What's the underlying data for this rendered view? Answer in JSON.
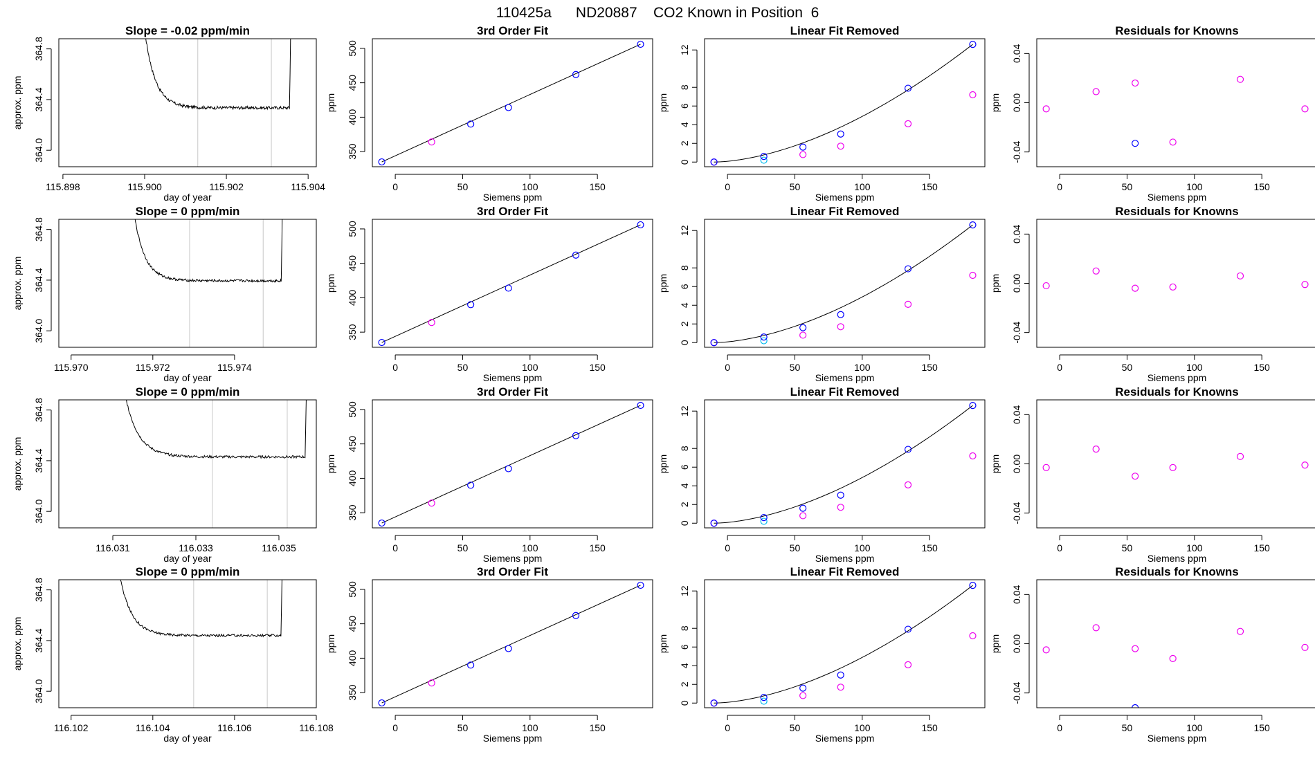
{
  "page_title": "110425a      ND20887    CO2 Known in Position  6",
  "chart_data": [
    {
      "id": "r0c0",
      "type": "line",
      "title": "Slope =  -0.02  ppm/min",
      "xlabel": "day of year",
      "ylabel": "approx. ppm",
      "xlim": [
        115.8979,
        115.9042
      ],
      "ylim": [
        363.87,
        364.88
      ],
      "xticks": [
        115.898,
        115.9,
        115.902,
        115.904
      ],
      "xtick_labels": [
        "115.898",
        "115.900",
        "115.902",
        "115.904"
      ],
      "yticks": [
        364.0,
        364.4,
        364.8
      ],
      "ytick_labels": [
        "364.0",
        "364.4",
        "364.8"
      ],
      "vlines": [
        115.9013,
        115.9031
      ],
      "x_start": 115.8999,
      "x_end": 115.9036,
      "plateau": 364.335,
      "jitter": 0.012
    },
    {
      "id": "r0c1",
      "type": "scatter",
      "title": "3rd Order Fit",
      "xlabel": "Siemens ppm",
      "ylabel": "ppm",
      "xlim": [
        -17,
        191
      ],
      "ylim": [
        328,
        514
      ],
      "xticks": [
        0,
        50,
        100,
        150
      ],
      "xtick_labels": [
        "0",
        "50",
        "100",
        "150"
      ],
      "yticks": [
        350,
        400,
        450,
        500
      ],
      "ytick_labels": [
        "350",
        "400",
        "450",
        "500"
      ],
      "points": {
        "x": [
          -10,
          27,
          56,
          84,
          134,
          182
        ],
        "y": [
          335,
          364,
          390,
          414,
          462,
          506
        ]
      },
      "point_colors": [
        "#0000ff",
        "#ee00ee",
        "#0000ff",
        "#0000ff",
        "#0000ff",
        "#0000ff"
      ],
      "fit_line": [
        [
          -10,
          335
        ],
        [
          182,
          506
        ]
      ]
    },
    {
      "id": "r0c2",
      "type": "scatter",
      "title": "Linear Fit Removed",
      "xlabel": "Siemens ppm",
      "ylabel": "ppm",
      "xlim": [
        -17,
        191
      ],
      "ylim": [
        -0.5,
        13.2
      ],
      "xticks": [
        0,
        50,
        100,
        150
      ],
      "xtick_labels": [
        "0",
        "50",
        "100",
        "150"
      ],
      "yticks": [
        0,
        2,
        4,
        6,
        8,
        12
      ],
      "ytick_labels": [
        "0",
        "2",
        "4",
        "6",
        "8",
        "12"
      ],
      "blue_points": {
        "x": [
          -10,
          27,
          56,
          84,
          134,
          182
        ],
        "y": [
          0,
          0.6,
          1.6,
          3.0,
          7.9,
          12.6
        ]
      },
      "cyan_points": {
        "x": [
          27
        ],
        "y": [
          0.2
        ]
      },
      "magenta_points": {
        "x": [
          -10,
          56,
          84,
          134,
          182
        ],
        "y": [
          0,
          0.8,
          1.7,
          4.1,
          7.2
        ]
      },
      "curve": {
        "x0": -10,
        "x1": 182,
        "y1": 12.6,
        "power": 1.7
      }
    },
    {
      "id": "r0c3",
      "type": "scatter",
      "title": "Residuals for Knowns",
      "xlabel": "Siemens ppm",
      "ylabel": "ppm",
      "xlim": [
        -17,
        191
      ],
      "ylim": [
        -0.052,
        0.052
      ],
      "xticks": [
        0,
        50,
        100,
        150
      ],
      "xtick_labels": [
        "0",
        "50",
        "100",
        "150"
      ],
      "yticks": [
        -0.04,
        0.0,
        0.04
      ],
      "ytick_labels": [
        "-0.04",
        "0.00",
        "0.04"
      ],
      "points": {
        "x": [
          -10,
          27,
          56,
          56,
          84,
          134,
          182
        ],
        "y": [
          -0.005,
          0.009,
          0.016,
          -0.033,
          -0.032,
          0.019,
          -0.005
        ]
      },
      "point_colors": [
        "#ee00ee",
        "#ee00ee",
        "#ee00ee",
        "#0000ff",
        "#ee00ee",
        "#ee00ee",
        "#ee00ee"
      ]
    },
    {
      "id": "r1c0",
      "type": "line",
      "title": "Slope =  0  ppm/min",
      "xlabel": "day of year",
      "ylabel": "approx. ppm",
      "xlim": [
        115.9697,
        115.976
      ],
      "ylim": [
        363.87,
        364.88
      ],
      "xticks": [
        115.97,
        115.972,
        115.974
      ],
      "xtick_labels": [
        "115.970",
        "115.972",
        "115.974"
      ],
      "yticks": [
        364.0,
        364.4,
        364.8
      ],
      "ytick_labels": [
        "364.0",
        "364.4",
        "364.8"
      ],
      "vlines": [
        115.9729,
        115.9747
      ],
      "x_start": 115.9714,
      "x_end": 115.9752,
      "plateau": 364.395,
      "jitter": 0.01
    },
    {
      "id": "r1c1",
      "type": "scatter",
      "title": "3rd Order Fit",
      "xlabel": "Siemens ppm",
      "ylabel": "ppm",
      "xlim": [
        -17,
        191
      ],
      "ylim": [
        328,
        514
      ],
      "xticks": [
        0,
        50,
        100,
        150
      ],
      "xtick_labels": [
        "0",
        "50",
        "100",
        "150"
      ],
      "yticks": [
        350,
        400,
        450,
        500
      ],
      "ytick_labels": [
        "350",
        "400",
        "450",
        "500"
      ],
      "points": {
        "x": [
          -10,
          27,
          56,
          84,
          134,
          182
        ],
        "y": [
          335,
          364,
          390,
          414,
          462,
          506
        ]
      },
      "point_colors": [
        "#0000ff",
        "#ee00ee",
        "#0000ff",
        "#0000ff",
        "#0000ff",
        "#0000ff"
      ],
      "fit_line": [
        [
          -10,
          335
        ],
        [
          182,
          506
        ]
      ]
    },
    {
      "id": "r1c2",
      "type": "scatter",
      "title": "Linear Fit Removed",
      "xlabel": "Siemens ppm",
      "ylabel": "ppm",
      "xlim": [
        -17,
        191
      ],
      "ylim": [
        -0.5,
        13.2
      ],
      "xticks": [
        0,
        50,
        100,
        150
      ],
      "xtick_labels": [
        "0",
        "50",
        "100",
        "150"
      ],
      "yticks": [
        0,
        2,
        4,
        6,
        8,
        12
      ],
      "ytick_labels": [
        "0",
        "2",
        "4",
        "6",
        "8",
        "12"
      ],
      "blue_points": {
        "x": [
          -10,
          27,
          56,
          84,
          134,
          182
        ],
        "y": [
          0,
          0.6,
          1.6,
          3.0,
          7.9,
          12.6
        ]
      },
      "cyan_points": {
        "x": [
          27
        ],
        "y": [
          0.2
        ]
      },
      "magenta_points": {
        "x": [
          -10,
          56,
          84,
          134,
          182
        ],
        "y": [
          0,
          0.8,
          1.7,
          4.1,
          7.2
        ]
      },
      "curve": {
        "x0": -10,
        "x1": 182,
        "y1": 12.6,
        "power": 1.7
      }
    },
    {
      "id": "r1c3",
      "type": "scatter",
      "title": "Residuals for Knowns",
      "xlabel": "Siemens ppm",
      "ylabel": "ppm",
      "xlim": [
        -17,
        191
      ],
      "ylim": [
        -0.052,
        0.052
      ],
      "xticks": [
        0,
        50,
        100,
        150
      ],
      "xtick_labels": [
        "0",
        "50",
        "100",
        "150"
      ],
      "yticks": [
        -0.04,
        0.0,
        0.04
      ],
      "ytick_labels": [
        "-0.04",
        "0.00",
        "0.04"
      ],
      "points": {
        "x": [
          -10,
          27,
          56,
          84,
          134,
          182
        ],
        "y": [
          -0.002,
          0.01,
          -0.004,
          -0.003,
          0.006,
          -0.001
        ]
      },
      "point_colors": [
        "#ee00ee",
        "#ee00ee",
        "#ee00ee",
        "#ee00ee",
        "#ee00ee",
        "#ee00ee"
      ]
    },
    {
      "id": "r2c0",
      "type": "line",
      "title": "Slope =  0  ppm/min",
      "xlabel": "day of year",
      "ylabel": "approx. ppm",
      "xlim": [
        116.0297,
        116.0359
      ],
      "ylim": [
        363.87,
        364.88
      ],
      "xticks": [
        116.031,
        116.033,
        116.035
      ],
      "xtick_labels": [
        "116.031",
        "116.033",
        "116.035"
      ],
      "yticks": [
        364.0,
        364.4,
        364.8
      ],
      "ytick_labels": [
        "364.0",
        "364.4",
        "364.8"
      ],
      "vlines": [
        116.0334,
        116.0352
      ],
      "x_start": 116.0311,
      "x_end": 116.0357,
      "plateau": 364.43,
      "jitter": 0.01
    },
    {
      "id": "r2c1",
      "type": "scatter",
      "title": "3rd Order Fit",
      "xlabel": "Siemens ppm",
      "ylabel": "ppm",
      "xlim": [
        -17,
        191
      ],
      "ylim": [
        328,
        514
      ],
      "xticks": [
        0,
        50,
        100,
        150
      ],
      "xtick_labels": [
        "0",
        "50",
        "100",
        "150"
      ],
      "yticks": [
        350,
        400,
        450,
        500
      ],
      "ytick_labels": [
        "350",
        "400",
        "450",
        "500"
      ],
      "points": {
        "x": [
          -10,
          27,
          56,
          84,
          134,
          182
        ],
        "y": [
          335,
          364,
          390,
          414,
          462,
          506
        ]
      },
      "point_colors": [
        "#0000ff",
        "#ee00ee",
        "#0000ff",
        "#0000ff",
        "#0000ff",
        "#0000ff"
      ],
      "fit_line": [
        [
          -10,
          335
        ],
        [
          182,
          506
        ]
      ]
    },
    {
      "id": "r2c2",
      "type": "scatter",
      "title": "Linear Fit Removed",
      "xlabel": "Siemens ppm",
      "ylabel": "ppm",
      "xlim": [
        -17,
        191
      ],
      "ylim": [
        -0.5,
        13.2
      ],
      "xticks": [
        0,
        50,
        100,
        150
      ],
      "xtick_labels": [
        "0",
        "50",
        "100",
        "150"
      ],
      "yticks": [
        0,
        2,
        4,
        6,
        8,
        12
      ],
      "ytick_labels": [
        "0",
        "2",
        "4",
        "6",
        "8",
        "12"
      ],
      "blue_points": {
        "x": [
          -10,
          27,
          56,
          84,
          134,
          182
        ],
        "y": [
          0,
          0.6,
          1.6,
          3.0,
          7.9,
          12.6
        ]
      },
      "cyan_points": {
        "x": [
          27
        ],
        "y": [
          0.2
        ]
      },
      "magenta_points": {
        "x": [
          -10,
          56,
          84,
          134,
          182
        ],
        "y": [
          0,
          0.8,
          1.7,
          4.1,
          7.2
        ]
      },
      "curve": {
        "x0": -10,
        "x1": 182,
        "y1": 12.6,
        "power": 1.7
      }
    },
    {
      "id": "r2c3",
      "type": "scatter",
      "title": "Residuals for Knowns",
      "xlabel": "Siemens ppm",
      "ylabel": "ppm",
      "xlim": [
        -17,
        191
      ],
      "ylim": [
        -0.052,
        0.052
      ],
      "xticks": [
        0,
        50,
        100,
        150
      ],
      "xtick_labels": [
        "0",
        "50",
        "100",
        "150"
      ],
      "yticks": [
        -0.04,
        0.0,
        0.04
      ],
      "ytick_labels": [
        "-0.04",
        "0.00",
        "0.04"
      ],
      "points": {
        "x": [
          -10,
          27,
          56,
          84,
          134,
          182
        ],
        "y": [
          -0.003,
          0.012,
          -0.01,
          -0.003,
          0.006,
          -0.001
        ]
      },
      "point_colors": [
        "#ee00ee",
        "#ee00ee",
        "#ee00ee",
        "#ee00ee",
        "#ee00ee",
        "#ee00ee"
      ]
    },
    {
      "id": "r3c0",
      "type": "line",
      "title": "Slope =  0  ppm/min",
      "xlabel": "day of year",
      "ylabel": "approx. ppm",
      "xlim": [
        116.1017,
        116.108
      ],
      "ylim": [
        363.87,
        364.88
      ],
      "xticks": [
        116.102,
        116.104,
        116.106,
        116.108
      ],
      "xtick_labels": [
        "116.102",
        "116.104",
        "116.106",
        "116.108"
      ],
      "yticks": [
        364.0,
        364.4,
        364.8
      ],
      "ytick_labels": [
        "364.0",
        "364.4",
        "364.8"
      ],
      "vlines": [
        116.105,
        116.1068
      ],
      "x_start": 116.103,
      "x_end": 116.1072,
      "plateau": 364.44,
      "jitter": 0.01
    },
    {
      "id": "r3c1",
      "type": "scatter",
      "title": "3rd Order Fit",
      "xlabel": "Siemens ppm",
      "ylabel": "ppm",
      "xlim": [
        -17,
        191
      ],
      "ylim": [
        328,
        514
      ],
      "xticks": [
        0,
        50,
        100,
        150
      ],
      "xtick_labels": [
        "0",
        "50",
        "100",
        "150"
      ],
      "yticks": [
        350,
        400,
        450,
        500
      ],
      "ytick_labels": [
        "350",
        "400",
        "450",
        "500"
      ],
      "points": {
        "x": [
          -10,
          27,
          56,
          84,
          134,
          182
        ],
        "y": [
          335,
          364,
          390,
          414,
          462,
          506
        ]
      },
      "point_colors": [
        "#0000ff",
        "#ee00ee",
        "#0000ff",
        "#0000ff",
        "#0000ff",
        "#0000ff"
      ],
      "fit_line": [
        [
          -10,
          335
        ],
        [
          182,
          506
        ]
      ]
    },
    {
      "id": "r3c2",
      "type": "scatter",
      "title": "Linear Fit Removed",
      "xlabel": "Siemens ppm",
      "ylabel": "ppm",
      "xlim": [
        -17,
        191
      ],
      "ylim": [
        -0.5,
        13.2
      ],
      "xticks": [
        0,
        50,
        100,
        150
      ],
      "xtick_labels": [
        "0",
        "50",
        "100",
        "150"
      ],
      "yticks": [
        0,
        2,
        4,
        6,
        8,
        12
      ],
      "ytick_labels": [
        "0",
        "2",
        "4",
        "6",
        "8",
        "12"
      ],
      "blue_points": {
        "x": [
          -10,
          27,
          56,
          84,
          134,
          182
        ],
        "y": [
          0,
          0.6,
          1.6,
          3.0,
          7.9,
          12.6
        ]
      },
      "cyan_points": {
        "x": [
          27
        ],
        "y": [
          0.2
        ]
      },
      "magenta_points": {
        "x": [
          -10,
          56,
          84,
          134,
          182
        ],
        "y": [
          0,
          0.8,
          1.7,
          4.1,
          7.2
        ]
      },
      "curve": {
        "x0": -10,
        "x1": 182,
        "y1": 12.6,
        "power": 1.7
      }
    },
    {
      "id": "r3c3",
      "type": "scatter",
      "title": "Residuals for Knowns",
      "xlabel": "Siemens ppm",
      "ylabel": "ppm",
      "xlim": [
        -17,
        191
      ],
      "ylim": [
        -0.052,
        0.052
      ],
      "xticks": [
        0,
        50,
        100,
        150
      ],
      "xtick_labels": [
        "0",
        "50",
        "100",
        "150"
      ],
      "yticks": [
        -0.04,
        0.0,
        0.04
      ],
      "ytick_labels": [
        "-0.04",
        "0.00",
        "0.04"
      ],
      "points": {
        "x": [
          -10,
          27,
          56,
          56,
          84,
          134,
          182
        ],
        "y": [
          -0.005,
          0.013,
          -0.004,
          -0.052,
          -0.012,
          0.01,
          -0.003
        ]
      },
      "point_colors": [
        "#ee00ee",
        "#ee00ee",
        "#ee00ee",
        "#0000ff",
        "#ee00ee",
        "#ee00ee",
        "#ee00ee"
      ]
    }
  ],
  "colors": {
    "blue": "#0000ff",
    "magenta": "#ee00ee",
    "cyan": "#00bbee",
    "gray_line": "#c8c8c8",
    "trace": "#000000",
    "red_mark": "#ff8080"
  }
}
